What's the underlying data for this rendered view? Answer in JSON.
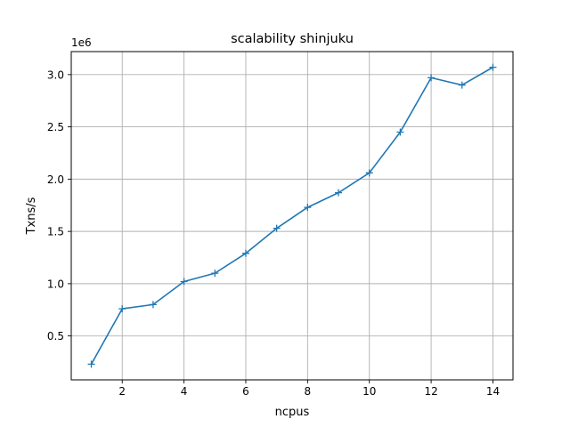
{
  "chart_data": {
    "type": "line",
    "title": "scalability shinjuku",
    "xlabel": "ncpus",
    "ylabel": "Txns/s",
    "offset_label": "1e6",
    "x_ticks": [
      2,
      4,
      6,
      8,
      10,
      12,
      14
    ],
    "x_tick_labels": [
      "2",
      "4",
      "6",
      "8",
      "10",
      "12",
      "14"
    ],
    "y_ticks": [
      0.5,
      1.0,
      1.5,
      2.0,
      2.5,
      3.0
    ],
    "y_tick_labels": [
      "0.5",
      "1.0",
      "1.5",
      "2.0",
      "2.5",
      "3.0"
    ],
    "xlim": [
      0.35,
      14.65
    ],
    "ylim": [
      0.08,
      3.22
    ],
    "grid": true,
    "marker": "+",
    "color": "#1f77b4",
    "series": [
      {
        "x": [
          1,
          2,
          3,
          4,
          5,
          6,
          7,
          8,
          9,
          10,
          11,
          12,
          13,
          14
        ],
        "y": [
          0.23,
          0.76,
          0.8,
          1.02,
          1.1,
          1.29,
          1.53,
          1.73,
          1.87,
          2.06,
          2.45,
          2.97,
          2.9,
          3.07
        ]
      }
    ]
  }
}
